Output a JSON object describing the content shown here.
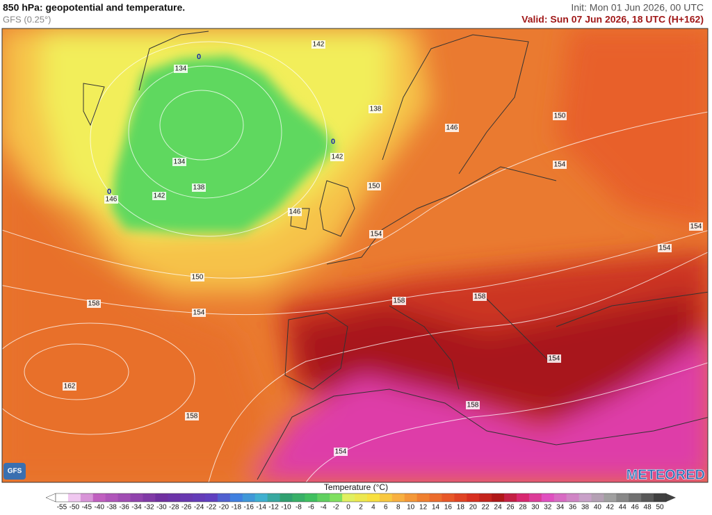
{
  "header": {
    "title": "850 hPa: geopotential and temperature.",
    "model": "GFS (0.25°)",
    "init": "Init: Mon 01 Jun 2026, 00 UTC",
    "valid": "Valid: Sun 07 Jun 2026, 18 UTC (H+162)"
  },
  "map": {
    "geopotential_labels": [
      "142",
      "134",
      "138",
      "146",
      "150",
      "134",
      "142",
      "138",
      "142",
      "146",
      "150",
      "154",
      "146",
      "154",
      "154",
      "154",
      "150",
      "158",
      "154",
      "158",
      "158",
      "154",
      "162",
      "158",
      "158",
      "154"
    ],
    "isotherm_labels": [
      "0",
      "0",
      "0"
    ],
    "logos": {
      "model": "GFS",
      "brand": "METEORED"
    }
  },
  "legend": {
    "title": "Temperature (°C)",
    "ticks": [
      -55,
      -50,
      -45,
      -40,
      -38,
      -36,
      -34,
      -32,
      -30,
      -28,
      -26,
      -24,
      -22,
      -20,
      -18,
      -16,
      -14,
      -12,
      -10,
      -8,
      -6,
      -4,
      -2,
      0,
      2,
      4,
      6,
      8,
      10,
      12,
      14,
      16,
      18,
      20,
      22,
      24,
      26,
      28,
      30,
      32,
      34,
      36,
      38,
      40,
      42,
      44,
      46,
      48,
      50
    ]
  }
}
